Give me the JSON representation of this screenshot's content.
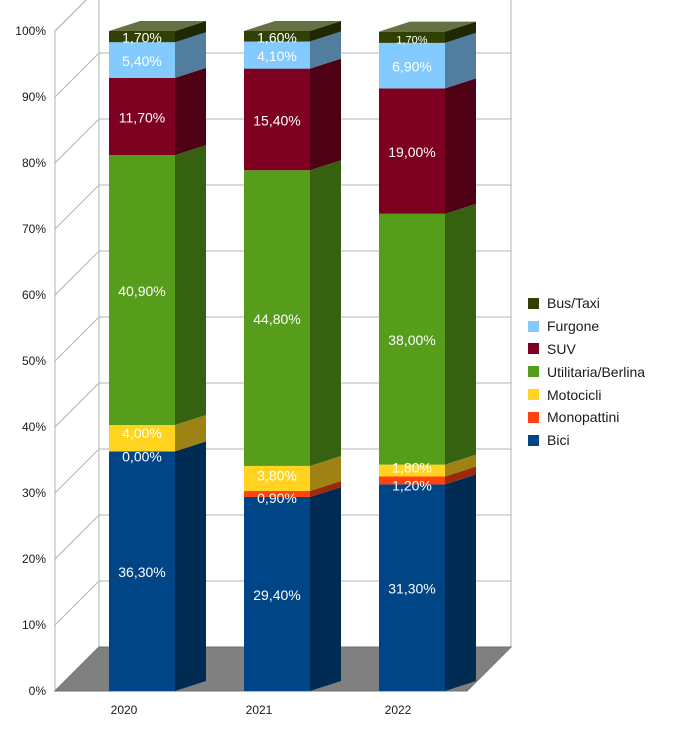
{
  "chart_data": {
    "type": "bar",
    "stacked": true,
    "percent_stacked": true,
    "three_d": true,
    "title": "",
    "xlabel": "",
    "ylabel": "",
    "ylim": [
      0,
      100
    ],
    "y_ticks": [
      "0%",
      "10%",
      "20%",
      "30%",
      "40%",
      "50%",
      "60%",
      "70%",
      "80%",
      "90%",
      "100%"
    ],
    "categories": [
      "2020",
      "2021",
      "2022"
    ],
    "series": [
      {
        "name": "Bici",
        "color": "#004586",
        "values": [
          36.3,
          29.4,
          31.3
        ],
        "labels": [
          "36,30%",
          "29,40%",
          "31,30%"
        ]
      },
      {
        "name": "Monopattini",
        "color": "#ff420e",
        "values": [
          0.0,
          0.9,
          1.2
        ],
        "labels": [
          "0,00%",
          "0,90%",
          "1,20%"
        ]
      },
      {
        "name": "Motocicli",
        "color": "#ffd320",
        "values": [
          4.0,
          3.8,
          1.8
        ],
        "labels": [
          "4,00%",
          "3,80%",
          "1,80%"
        ]
      },
      {
        "name": "Utilitaria/Berlina",
        "color": "#579d1c",
        "values": [
          40.9,
          44.8,
          38.0
        ],
        "labels": [
          "40,90%",
          "44,80%",
          "38,00%"
        ]
      },
      {
        "name": "SUV",
        "color": "#7e0021",
        "values": [
          11.7,
          15.4,
          19.0
        ],
        "labels": [
          "11,70%",
          "15,40%",
          "19,00%"
        ]
      },
      {
        "name": "Furgone",
        "color": "#83caff",
        "values": [
          5.4,
          4.1,
          6.9
        ],
        "labels": [
          "5,40%",
          "4,10%",
          "6,90%"
        ]
      },
      {
        "name": "Bus/Taxi",
        "color": "#314004",
        "values": [
          1.7,
          1.6,
          1.7
        ],
        "labels": [
          "1,70%",
          "1,60%",
          "1,70%"
        ]
      }
    ],
    "legend_position": "right",
    "grid": true
  },
  "legend": {
    "items": [
      {
        "name": "Bus/Taxi",
        "color": "#314004"
      },
      {
        "name": "Furgone",
        "color": "#83caff"
      },
      {
        "name": "SUV",
        "color": "#7e0021"
      },
      {
        "name": "Utilitaria/Berlina",
        "color": "#579d1c"
      },
      {
        "name": "Motocicli",
        "color": "#ffd320"
      },
      {
        "name": "Monopattini",
        "color": "#ff420e"
      },
      {
        "name": "Bici",
        "color": "#004586"
      }
    ]
  }
}
